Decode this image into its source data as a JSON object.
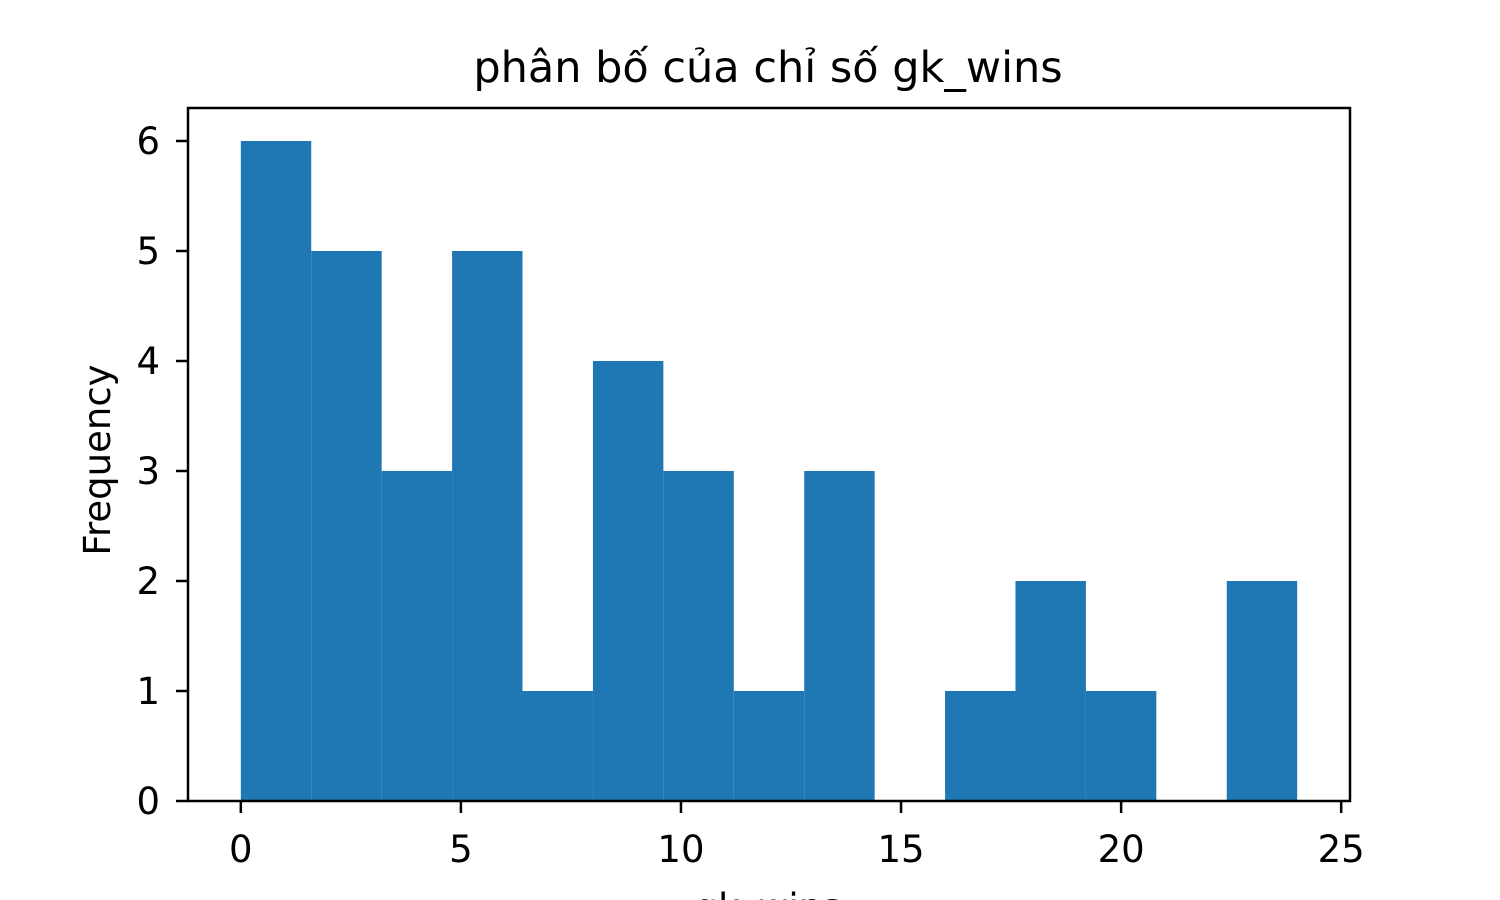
{
  "chart_data": {
    "type": "bar",
    "title": "phân bố của chỉ số gk_wins",
    "xlabel": "gk_wins",
    "ylabel": "Frequency",
    "bins": [
      {
        "x0": 0.0,
        "x1": 1.6,
        "count": 6
      },
      {
        "x0": 1.6,
        "x1": 3.2,
        "count": 5
      },
      {
        "x0": 3.2,
        "x1": 4.8,
        "count": 3
      },
      {
        "x0": 4.8,
        "x1": 6.4,
        "count": 5
      },
      {
        "x0": 6.4,
        "x1": 8.0,
        "count": 1
      },
      {
        "x0": 8.0,
        "x1": 9.6,
        "count": 4
      },
      {
        "x0": 9.6,
        "x1": 11.2,
        "count": 3
      },
      {
        "x0": 11.2,
        "x1": 12.8,
        "count": 1
      },
      {
        "x0": 12.8,
        "x1": 14.4,
        "count": 3
      },
      {
        "x0": 14.4,
        "x1": 16.0,
        "count": 0
      },
      {
        "x0": 16.0,
        "x1": 17.6,
        "count": 1
      },
      {
        "x0": 17.6,
        "x1": 19.2,
        "count": 2
      },
      {
        "x0": 19.2,
        "x1": 20.8,
        "count": 1
      },
      {
        "x0": 20.8,
        "x1": 22.4,
        "count": 0
      },
      {
        "x0": 22.4,
        "x1": 24.0,
        "count": 2
      }
    ],
    "xlim": [
      -1.2,
      25.2
    ],
    "ylim": [
      0,
      6.3
    ],
    "xticks": [
      "0",
      "5",
      "10",
      "15",
      "20",
      "25"
    ],
    "yticks": [
      "0",
      "1",
      "2",
      "3",
      "4",
      "5",
      "6"
    ],
    "bar_color": "#1f77b4",
    "grid": false
  }
}
